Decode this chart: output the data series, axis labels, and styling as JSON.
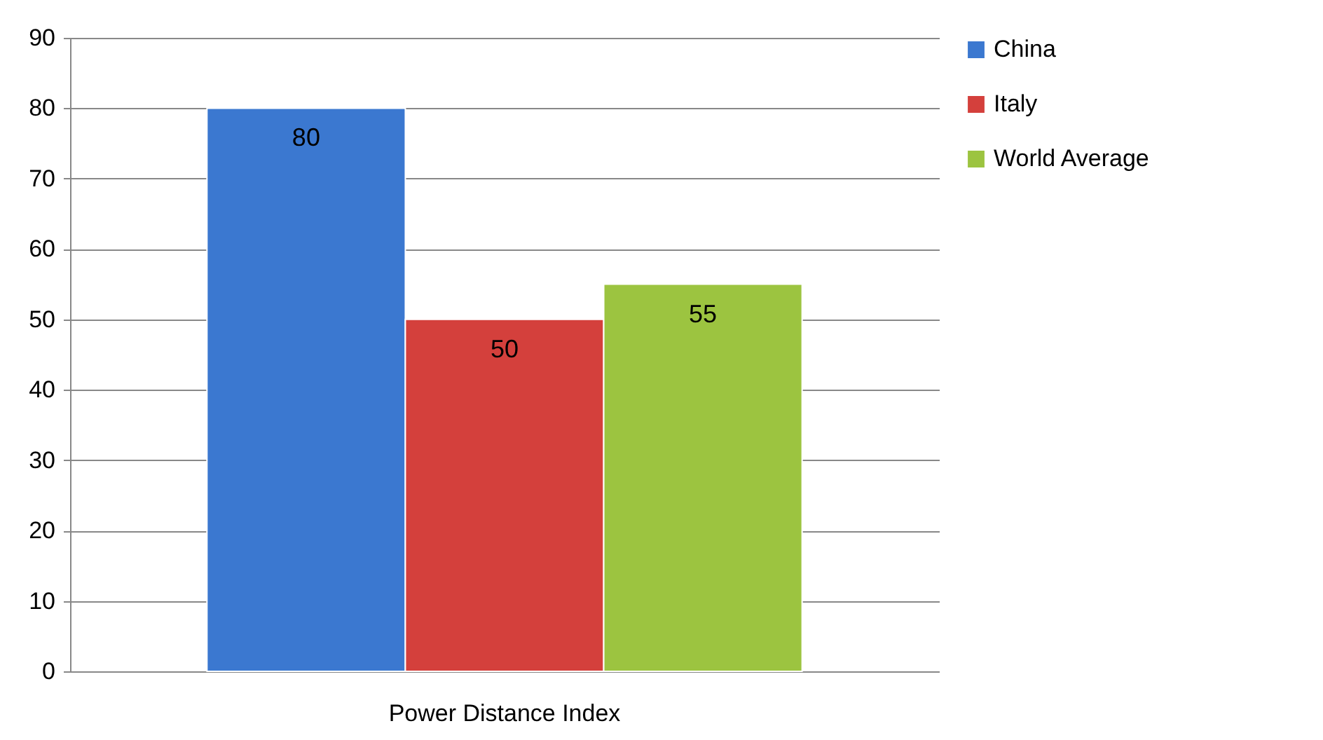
{
  "chart_data": {
    "type": "bar",
    "categories": [
      "Power Distance Index"
    ],
    "series": [
      {
        "name": "China",
        "color": "#3b78d0",
        "values": [
          80
        ]
      },
      {
        "name": "Italy",
        "color": "#d4403c",
        "values": [
          50
        ]
      },
      {
        "name": "World Average",
        "color": "#9cc440",
        "values": [
          55
        ]
      }
    ],
    "ylim": [
      0,
      90
    ],
    "yticks": [
      0,
      10,
      20,
      30,
      40,
      50,
      60,
      70,
      80,
      90
    ],
    "grid": "y",
    "legend": "right",
    "data_labels": true
  }
}
